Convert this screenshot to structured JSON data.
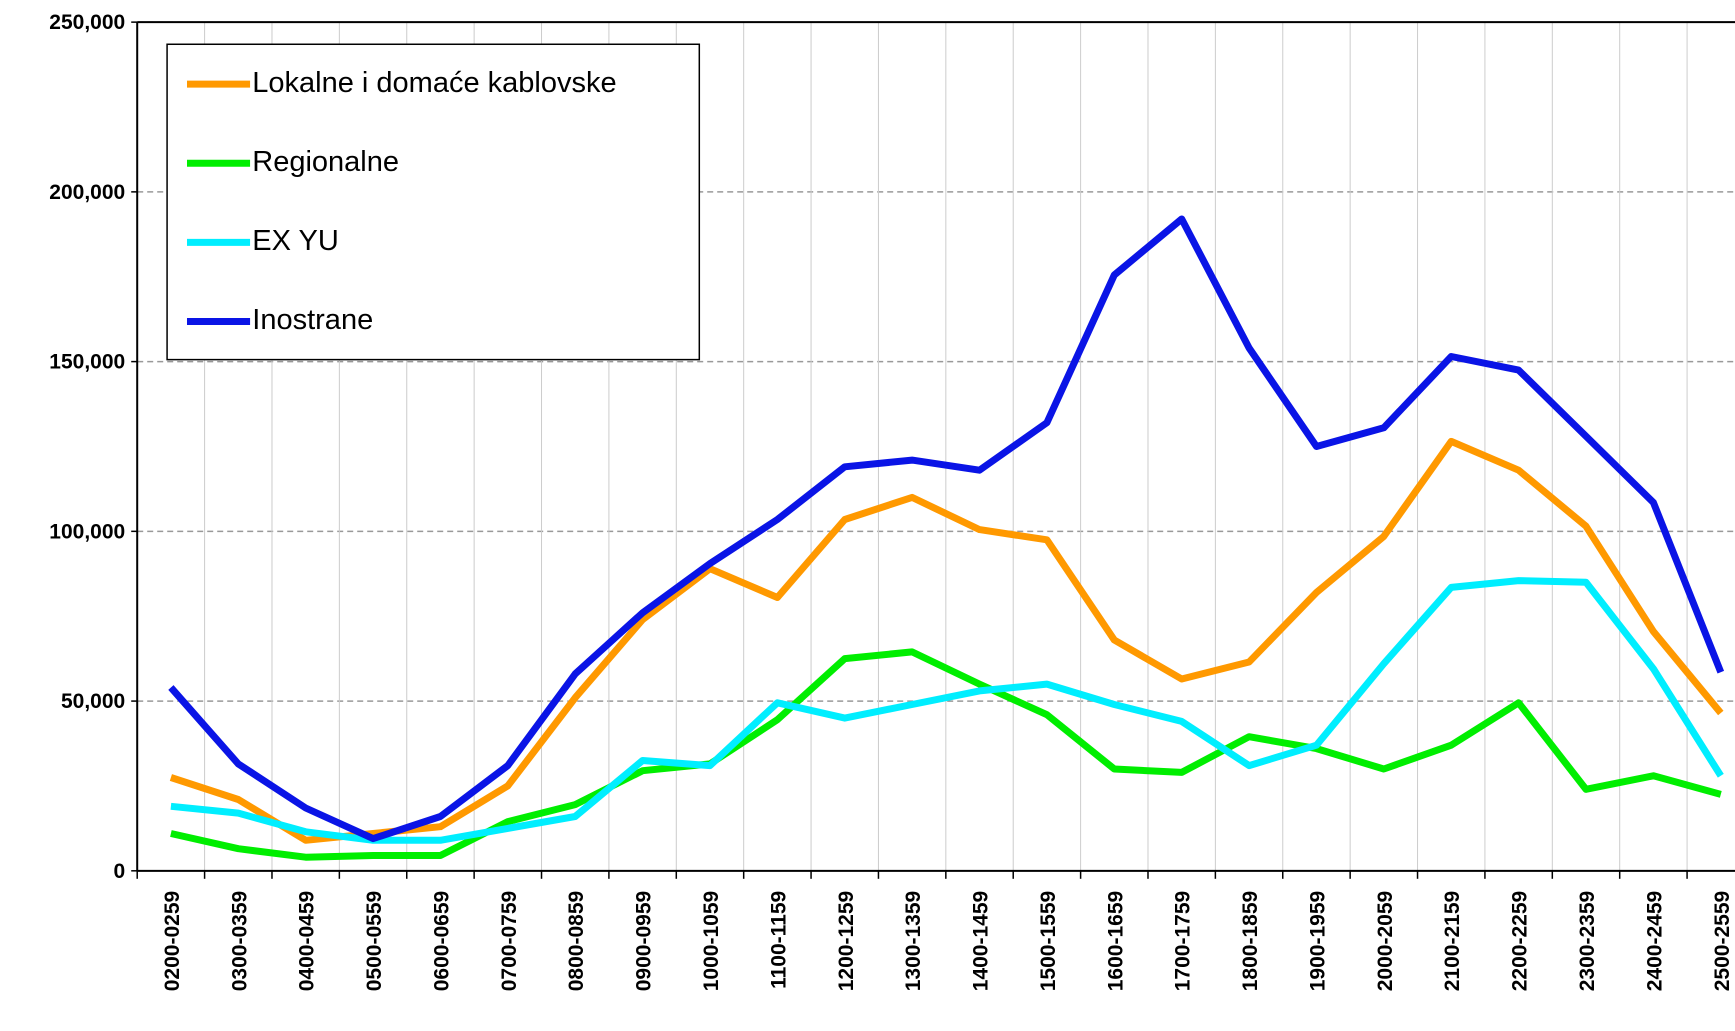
{
  "chart_data": {
    "type": "line",
    "categories": [
      "0200-0259",
      "0300-0359",
      "0400-0459",
      "0500-0559",
      "0600-0659",
      "0700-0759",
      "0800-0859",
      "0900-0959",
      "1000-1059",
      "1100-1159",
      "1200-1259",
      "1300-1359",
      "1400-1459",
      "1500-1559",
      "1600-1659",
      "1700-1759",
      "1800-1859",
      "1900-1959",
      "2000-2059",
      "2100-2159",
      "2200-2259",
      "2300-2359",
      "2400-2459",
      "2500-2559"
    ],
    "series": [
      {
        "name": "Lokalne i domaće kablovske",
        "color": "#ff9900",
        "values": [
          27500,
          21000,
          9000,
          11000,
          13000,
          25000,
          51000,
          74000,
          89000,
          80500,
          103500,
          110000,
          100500,
          97500,
          68000,
          56500,
          61500,
          82000,
          98500,
          126500,
          118000,
          101500,
          70500,
          46500
        ]
      },
      {
        "name": "Regionalne",
        "color": "#00ee00",
        "values": [
          11000,
          6500,
          4000,
          4500,
          4500,
          14500,
          19500,
          29500,
          31500,
          44500,
          62500,
          64500,
          55000,
          46000,
          30000,
          29000,
          39500,
          36000,
          30000,
          37000,
          49500,
          24000,
          28000,
          22500
        ]
      },
      {
        "name": "EX YU",
        "color": "#00eeff",
        "values": [
          19000,
          17000,
          11500,
          9000,
          9000,
          12500,
          16000,
          32500,
          31000,
          49500,
          45000,
          49000,
          53000,
          55000,
          49000,
          44000,
          31000,
          37000,
          61000,
          83500,
          85500,
          85000,
          59500,
          28000
        ]
      },
      {
        "name": "Inostrane",
        "color": "#0a14e6",
        "values": [
          54000,
          31500,
          18500,
          9500,
          16000,
          31000,
          58000,
          76000,
          90500,
          103500,
          119000,
          121000,
          118000,
          132000,
          175500,
          192000,
          154000,
          125000,
          130500,
          151500,
          147500,
          128000,
          108500,
          58500
        ]
      }
    ],
    "ylim": [
      0,
      250000
    ],
    "yticks": [
      0,
      {
        "value": 50000,
        "label": "50,000"
      },
      {
        "value": 100000,
        "label": "100,000"
      },
      {
        "value": 150000,
        "label": "150,000"
      },
      {
        "value": 200000,
        "label": "200,000"
      },
      {
        "value": 250000,
        "label": "250,000"
      }
    ],
    "grid": true,
    "legend": "upper left"
  }
}
